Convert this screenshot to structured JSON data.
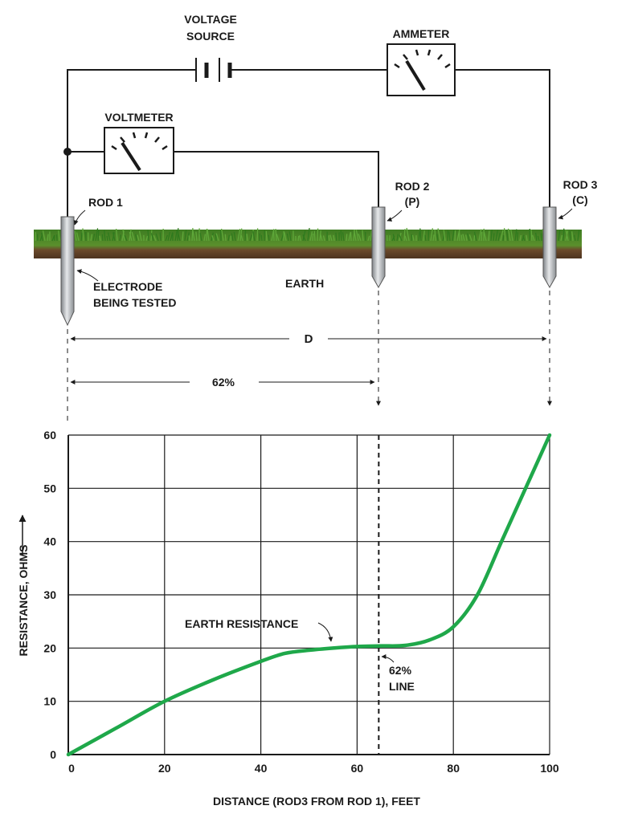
{
  "diagram": {
    "voltage_source_label_1": "VOLTAGE",
    "voltage_source_label_2": "SOURCE",
    "ammeter_label": "AMMETER",
    "voltmeter_label": "VOLTMETER",
    "rod1_label": "ROD 1",
    "rod2_label_1": "ROD 2",
    "rod2_label_2": "(P)",
    "rod3_label_1": "ROD 3",
    "rod3_label_2": "(C)",
    "electrode_label_1": "ELECTRODE",
    "electrode_label_2": "BEING TESTED",
    "earth_label": "EARTH",
    "distance_d_label": "D",
    "distance_62_label": "62%",
    "colors": {
      "grass": "#3f8f2a",
      "soil": "#6b4a2b",
      "rod": "#b9bcc0",
      "curve": "#1fa84a"
    }
  },
  "chart_data": {
    "type": "line",
    "xlabel": "DISTANCE (ROD3 FROM ROD 1), FEET",
    "ylabel": "RESISTANCE, OHMS",
    "xlim": [
      0,
      100
    ],
    "ylim": [
      0,
      60
    ],
    "x_ticks": [
      "0",
      "20",
      "40",
      "60",
      "80",
      "100"
    ],
    "y_ticks": [
      "0",
      "10",
      "20",
      "30",
      "40",
      "50",
      "60"
    ],
    "grid": true,
    "series": [
      {
        "x": [
          0,
          10,
          20,
          30,
          40,
          45,
          50,
          55,
          60,
          65,
          70,
          75,
          80,
          85,
          90,
          95,
          100
        ],
        "y": [
          0,
          5,
          10,
          14,
          17.5,
          19,
          19.6,
          20,
          20.3,
          20.4,
          20.5,
          21.5,
          24,
          30,
          40,
          50,
          60
        ]
      }
    ],
    "marker_line": {
      "x": 64.5,
      "label_1": "62%",
      "label_2": "LINE"
    },
    "annotation": "EARTH RESISTANCE",
    "color": "#1fa84a"
  }
}
